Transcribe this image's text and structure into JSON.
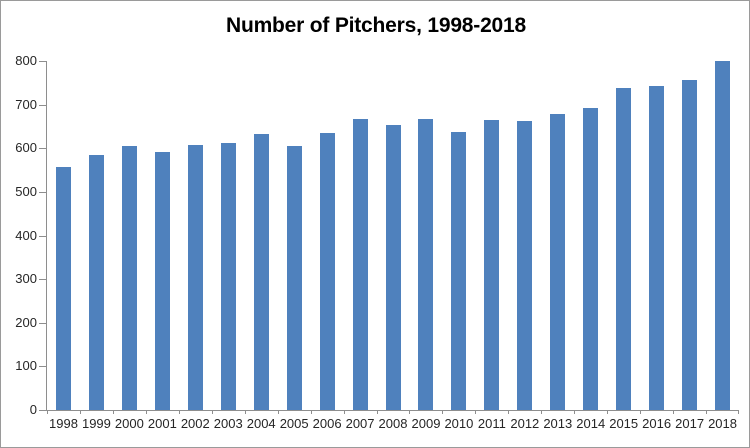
{
  "chart_data": {
    "type": "bar",
    "title": "Number of Pitchers, 1998-2018",
    "categories": [
      "1998",
      "1999",
      "2000",
      "2001",
      "2002",
      "2003",
      "2004",
      "2005",
      "2006",
      "2007",
      "2008",
      "2009",
      "2010",
      "2011",
      "2012",
      "2013",
      "2014",
      "2015",
      "2016",
      "2017",
      "2018"
    ],
    "values": [
      558,
      585,
      606,
      592,
      608,
      612,
      632,
      606,
      635,
      667,
      653,
      668,
      637,
      664,
      663,
      679,
      693,
      737,
      742,
      757,
      799
    ],
    "xlabel": "",
    "ylabel": "",
    "ylim": [
      0,
      800
    ],
    "y_ticks": [
      0,
      100,
      200,
      300,
      400,
      500,
      600,
      700,
      800
    ],
    "grid": false,
    "legend": false,
    "bar_color": "#4F81BD",
    "axis_color": "#8E8E8E",
    "text_color": "#262626",
    "canvas_border_color": "#9A9A9A",
    "background_color": "#FFFFFF"
  }
}
